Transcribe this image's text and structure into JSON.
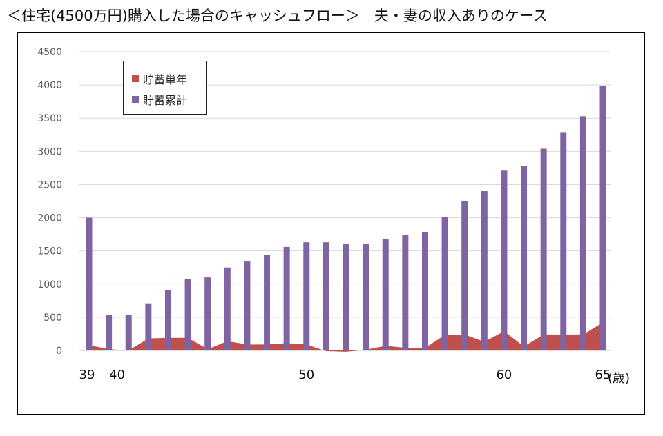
{
  "title": "＜住宅(4500万円)購入した場合のキャッシュフロー＞　夫・妻の収入ありのケース",
  "chart_data": {
    "type": "bar",
    "xlabel": "(歳)",
    "ylabel": "",
    "ylim": [
      0,
      4500
    ],
    "yticks": [
      0,
      500,
      1000,
      1500,
      2000,
      2500,
      3000,
      3500,
      4000,
      4500
    ],
    "x": [
      39,
      40,
      41,
      42,
      43,
      44,
      45,
      46,
      47,
      48,
      49,
      50,
      51,
      52,
      53,
      54,
      55,
      56,
      57,
      58,
      59,
      60,
      61,
      62,
      63,
      64,
      65
    ],
    "xtick_labels": [
      {
        "age": 39,
        "label": "39"
      },
      {
        "age": 40,
        "label": "40"
      },
      {
        "age": 50,
        "label": "50"
      },
      {
        "age": 60,
        "label": "60"
      },
      {
        "age": 65,
        "label": "65"
      }
    ],
    "grid": true,
    "legend_position": "top-left",
    "series": [
      {
        "name": "貯蓄単年",
        "type": "area",
        "color": "#c0504d",
        "values": [
          80,
          20,
          0,
          180,
          190,
          190,
          20,
          140,
          90,
          90,
          110,
          90,
          -10,
          -20,
          10,
          70,
          40,
          40,
          230,
          240,
          130,
          290,
          60,
          240,
          240,
          240,
          420
        ]
      },
      {
        "name": "貯蓄累計",
        "type": "bar",
        "color": "#8064a2",
        "values": [
          2000,
          530,
          530,
          710,
          910,
          1080,
          1100,
          1250,
          1340,
          1440,
          1560,
          1630,
          1630,
          1600,
          1610,
          1680,
          1740,
          1780,
          2010,
          2250,
          2400,
          2710,
          2780,
          3040,
          3280,
          3530,
          3990
        ]
      }
    ]
  }
}
